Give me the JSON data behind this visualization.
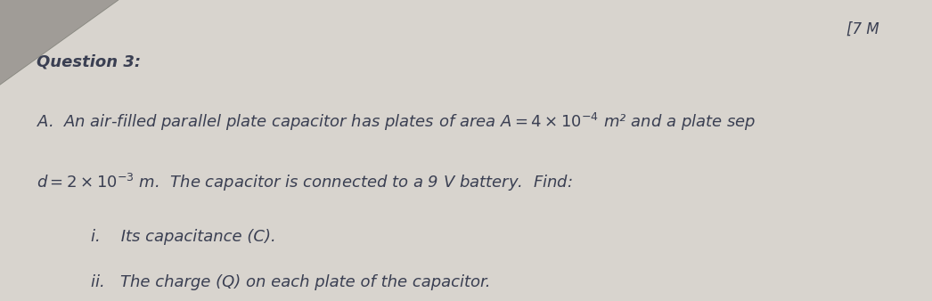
{
  "bg_color": "#d8d4ce",
  "paper_color": "#e8e5e0",
  "title_mark": "[7 M",
  "question_label": "Question 3:",
  "line_A": "A.  An air-filled parallel plate capacitor has plates of area  $A = 4 \\times 10^{-4}$ m² and a plate sep",
  "line_B": "$d = 2 \\times 10^{-3}$ m.  The capacitor is connected to a 9 V battery.  Find:",
  "line_i": "i.    Its capacitance (C).",
  "line_ii": "ii.   The charge (Q) on each plate of the capacitor.",
  "text_color": "#3a3f52",
  "font_size_main": 13,
  "font_size_question": 13,
  "font_size_mark": 12
}
